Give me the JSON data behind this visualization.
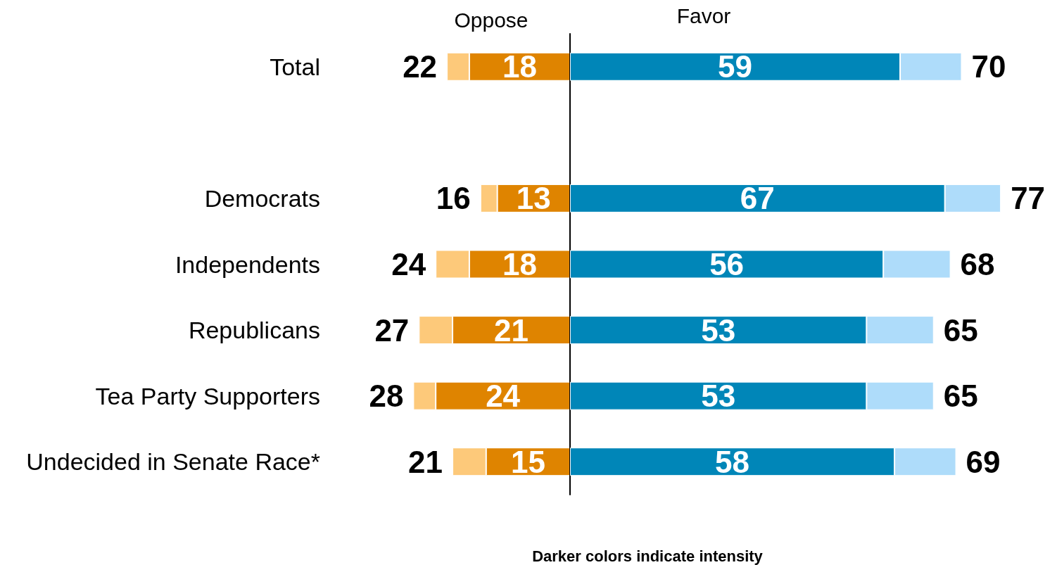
{
  "chart_data": [
    {
      "type": "bar",
      "orientation": "horizontal",
      "stacked": true,
      "categories": [
        "Total",
        null,
        "Democrats",
        "Independents",
        "Republicans",
        "Tea Party Supporters",
        "Undecided in Senate Race*"
      ],
      "series": [
        {
          "color": "#df8400",
          "values": [
            18,
            null,
            13,
            18,
            21,
            24,
            15
          ],
          "value_labels": [
            "18",
            null,
            "13",
            "18",
            "21",
            "24",
            "15"
          ]
        },
        {
          "color": "#fdc97a",
          "values": [
            4,
            null,
            3,
            6,
            6,
            4,
            6
          ]
        }
      ],
      "totals": [
        "22",
        null,
        "16",
        "24",
        "27",
        "28",
        "21"
      ],
      "tick_labels": "y",
      "grid": false,
      "annotations": [
        "Oppose"
      ]
    },
    {
      "type": "bar",
      "orientation": "horizontal",
      "stacked": true,
      "categories": [
        null,
        null,
        null,
        null,
        null,
        null,
        null
      ],
      "series": [
        {
          "color": "#0086b8",
          "values": [
            59,
            null,
            67,
            56,
            53,
            53,
            58
          ],
          "value_labels": [
            "59",
            null,
            "67",
            "56",
            "53",
            "53",
            "58"
          ]
        },
        {
          "color": "#aedcfa",
          "values": [
            11,
            null,
            10,
            12,
            12,
            12,
            11
          ]
        }
      ],
      "totals": [
        "70",
        null,
        "77",
        "68",
        "65",
        "65",
        "69"
      ],
      "tick_labels": false,
      "grid": false,
      "annotations": [
        "Favor",
        "Darker colors indicate intensity"
      ]
    }
  ]
}
